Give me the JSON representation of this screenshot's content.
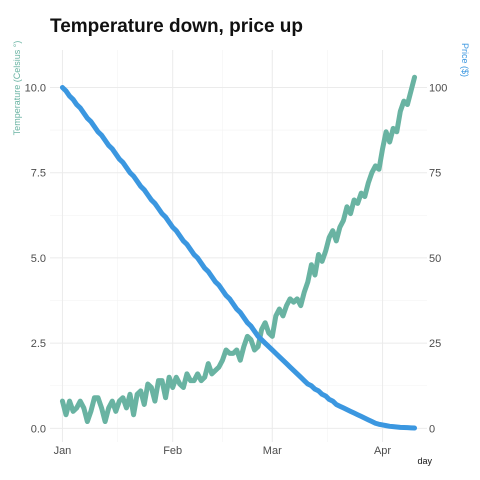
{
  "chart_data": {
    "type": "line",
    "title": "Temperature down, price up",
    "xlabel": "day",
    "ylabel_left": "Temperature (Celsius °)",
    "ylabel_right": "Price ($)",
    "x_ticks": [
      {
        "label": "Jan",
        "day": 0
      },
      {
        "label": "Feb",
        "day": 31
      },
      {
        "label": "Mar",
        "day": 59
      },
      {
        "label": "Apr",
        "day": 90
      }
    ],
    "y_left_ticks": [
      "0.0",
      "2.5",
      "5.0",
      "7.5",
      "10.0"
    ],
    "y_left_tick_values": [
      0,
      2.5,
      5,
      7.5,
      10
    ],
    "y_right_ticks": [
      "0",
      "25",
      "50",
      "75",
      "100"
    ],
    "y_right_tick_values": [
      0,
      25,
      50,
      75,
      100
    ],
    "xlim": [
      -3.5,
      102.5
    ],
    "ylim_left": [
      -0.4,
      11.1
    ],
    "ylim_right": [
      -4,
      111
    ],
    "grid": true,
    "legend": "none",
    "series": [
      {
        "name": "Temperature (Celsius °)",
        "axis": "left",
        "color": "#69b3a2",
        "x": [
          0,
          1,
          2,
          3,
          4,
          5,
          6,
          7,
          8,
          9,
          10,
          11,
          12,
          13,
          14,
          15,
          16,
          17,
          18,
          19,
          20,
          21,
          22,
          23,
          24,
          25,
          26,
          27,
          28,
          29,
          30,
          31,
          32,
          33,
          34,
          35,
          36,
          37,
          38,
          39,
          40,
          41,
          42,
          43,
          44,
          45,
          46,
          47,
          48,
          49,
          50,
          51,
          52,
          53,
          54,
          55,
          56,
          57,
          58,
          59,
          60,
          61,
          62,
          63,
          64,
          65,
          66,
          67,
          68,
          69,
          70,
          71,
          72,
          73,
          74,
          75,
          76,
          77,
          78,
          79,
          80,
          81,
          82,
          83,
          84,
          85,
          86,
          87,
          88,
          89,
          90,
          91,
          92,
          93,
          94,
          95,
          96,
          97,
          98,
          99
        ],
        "values": [
          0.8,
          0.4,
          0.8,
          0.5,
          0.6,
          0.8,
          0.6,
          0.2,
          0.5,
          0.9,
          0.9,
          0.6,
          0.2,
          0.6,
          0.8,
          0.5,
          0.8,
          0.9,
          0.6,
          1.0,
          0.4,
          1.0,
          1.1,
          0.7,
          1.3,
          1.2,
          0.8,
          1.4,
          1.4,
          0.9,
          1.5,
          1.2,
          1.5,
          1.3,
          1.2,
          1.6,
          1.4,
          1.4,
          1.6,
          1.4,
          1.5,
          1.9,
          1.6,
          1.7,
          1.8,
          2.0,
          2.3,
          2.2,
          2.2,
          2.3,
          2.0,
          2.4,
          2.7,
          2.6,
          2.3,
          2.4,
          2.9,
          3.1,
          2.8,
          2.7,
          3.3,
          3.5,
          3.3,
          3.6,
          3.8,
          3.7,
          3.8,
          3.6,
          4.0,
          4.3,
          4.8,
          4.5,
          5.1,
          4.9,
          5.2,
          5.6,
          5.8,
          5.5,
          5.9,
          6.1,
          6.5,
          6.3,
          6.7,
          6.6,
          6.9,
          6.8,
          7.2,
          7.5,
          7.7,
          7.6,
          8.2,
          8.7,
          8.4,
          8.8,
          8.7,
          9.3,
          9.6,
          9.5,
          9.9,
          10.3
        ],
        "y_min_value": 0.0
      },
      {
        "name": "Price ($)",
        "axis": "right",
        "color": "#3b97e0",
        "x": [
          0,
          1,
          2,
          3,
          4,
          5,
          6,
          7,
          8,
          9,
          10,
          11,
          12,
          13,
          14,
          15,
          16,
          17,
          18,
          19,
          20,
          21,
          22,
          23,
          24,
          25,
          26,
          27,
          28,
          29,
          30,
          31,
          32,
          33,
          34,
          35,
          36,
          37,
          38,
          39,
          40,
          41,
          42,
          43,
          44,
          45,
          46,
          47,
          48,
          49,
          50,
          51,
          52,
          53,
          54,
          55,
          56,
          57,
          58,
          59,
          60,
          61,
          62,
          63,
          64,
          65,
          66,
          67,
          68,
          69,
          70,
          71,
          72,
          73,
          74,
          75,
          76,
          77,
          78,
          79,
          80,
          81,
          82,
          83,
          84,
          85,
          86,
          87,
          88,
          89,
          90,
          91,
          92,
          93,
          94,
          95,
          96,
          97,
          98,
          99
        ],
        "values": [
          100,
          99,
          97.5,
          96.5,
          95,
          94,
          92.5,
          91,
          90,
          88.5,
          87,
          86,
          84.5,
          83,
          82,
          80.5,
          79,
          78,
          76.5,
          75,
          74,
          72.5,
          71,
          70,
          68.5,
          67,
          66,
          64.5,
          63,
          62,
          60.5,
          59,
          58,
          56.5,
          55,
          54,
          52.5,
          51,
          50,
          48.5,
          47,
          46,
          44.5,
          43,
          42,
          40.5,
          39,
          38,
          36.5,
          35,
          34,
          32.5,
          31,
          30,
          28.5,
          27,
          26,
          25,
          24,
          23,
          22,
          21,
          20,
          19,
          18,
          17,
          16,
          15,
          14,
          13,
          12.5,
          11.5,
          11,
          10,
          9.5,
          8.5,
          8,
          7,
          6.5,
          6,
          5.5,
          5,
          4.5,
          4,
          3.5,
          3,
          2.5,
          2,
          1.5,
          1.2,
          1,
          0.8,
          0.6,
          0.5,
          0.4,
          0.3,
          0.25,
          0.2,
          0.15,
          0.1
        ]
      }
    ]
  }
}
